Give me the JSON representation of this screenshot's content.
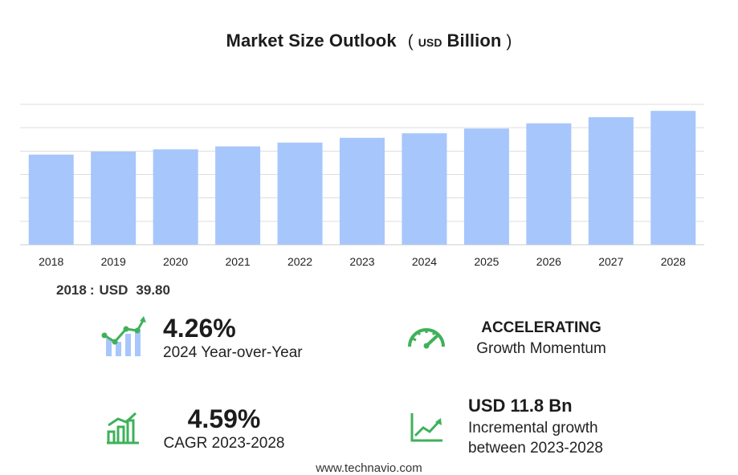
{
  "header": {
    "title": "Market Size Outlook",
    "unit_open": "(",
    "unit_small": "USD",
    "unit_big": "Billion",
    "unit_close": ")"
  },
  "chart_data": {
    "type": "bar",
    "categories": [
      "2018",
      "2019",
      "2020",
      "2021",
      "2022",
      "2023",
      "2024",
      "2025",
      "2026",
      "2027",
      "2028"
    ],
    "values": [
      39.8,
      41.1,
      42.1,
      43.4,
      45.1,
      47.2,
      49.2,
      51.3,
      53.6,
      56.3,
      59.1
    ],
    "ylim": [
      0,
      62
    ],
    "grid": true,
    "bar_color": "#a7c6fb",
    "grid_color": "#dddddd"
  },
  "base_year": {
    "year": "2018",
    "sep": ":",
    "currency": "USD",
    "value": "39.80"
  },
  "stats": {
    "yoy": {
      "value": "4.26%",
      "label": "2024 Year-over-Year"
    },
    "momentum": {
      "value": "ACCELERATING",
      "label": "Growth Momentum"
    },
    "cagr": {
      "value": "4.59%",
      "label": "CAGR 2023-2028"
    },
    "incremental": {
      "value": "USD 11.8 Bn",
      "label_line1": "Incremental growth",
      "label_line2": "between 2023-2028"
    }
  },
  "icons": {
    "yoy": "bar-trend-icon",
    "momentum": "speedometer-icon",
    "cagr": "growth-chart-icon",
    "incremental": "line-trend-icon",
    "accent": "#3fb15a"
  },
  "footer": {
    "source": "www.technavio.com"
  }
}
